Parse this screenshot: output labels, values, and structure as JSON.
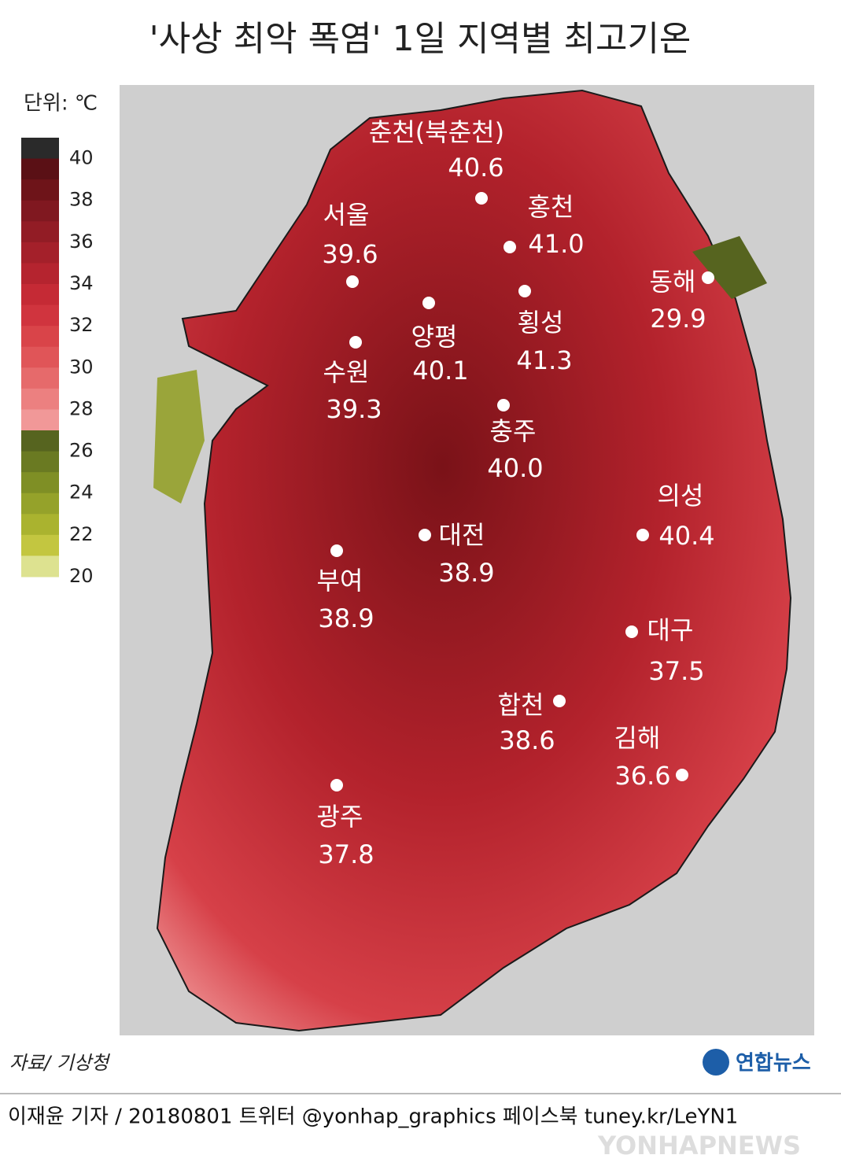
{
  "title": "'사상 최악 폭염' 1일 지역별 최고기온",
  "unit": "단위: ℃",
  "legend": {
    "ticks": [
      40,
      38,
      36,
      34,
      32,
      30,
      28,
      26,
      24,
      22,
      20
    ],
    "colors": [
      "#2a2a2a",
      "#5a1015",
      "#6e1419",
      "#801820",
      "#921c25",
      "#a4202a",
      "#b5242f",
      "#c52a35",
      "#d0343e",
      "#d94449",
      "#e05558",
      "#e66a6b",
      "#ec8080",
      "#f19898",
      "#56641f",
      "#6a7a22",
      "#7f8f25",
      "#95a22a",
      "#aab32f",
      "#c3c640",
      "#dde290"
    ]
  },
  "cities": [
    {
      "name": "춘천(북춘천)",
      "value": "40.6"
    },
    {
      "name": "홍천",
      "value": "41.0"
    },
    {
      "name": "서울",
      "value": "39.6"
    },
    {
      "name": "동해",
      "value": "29.9"
    },
    {
      "name": "양평",
      "value": "40.1"
    },
    {
      "name": "횡성",
      "value": "41.3"
    },
    {
      "name": "수원",
      "value": "39.3"
    },
    {
      "name": "충주",
      "value": "40.0"
    },
    {
      "name": "의성",
      "value": "40.4"
    },
    {
      "name": "대전",
      "value": "38.9"
    },
    {
      "name": "부여",
      "value": "38.9"
    },
    {
      "name": "대구",
      "value": "37.5"
    },
    {
      "name": "합천",
      "value": "38.6"
    },
    {
      "name": "김해",
      "value": "36.6"
    },
    {
      "name": "광주",
      "value": "37.8"
    }
  ],
  "source": "자료/ 기상청",
  "logo": "연합뉴스",
  "credits": "이재윤 기자 / 20180801   트위터 @yonhap_graphics  페이스북 tuney.kr/LeYN1",
  "watermark": "YONHAPNEWS"
}
